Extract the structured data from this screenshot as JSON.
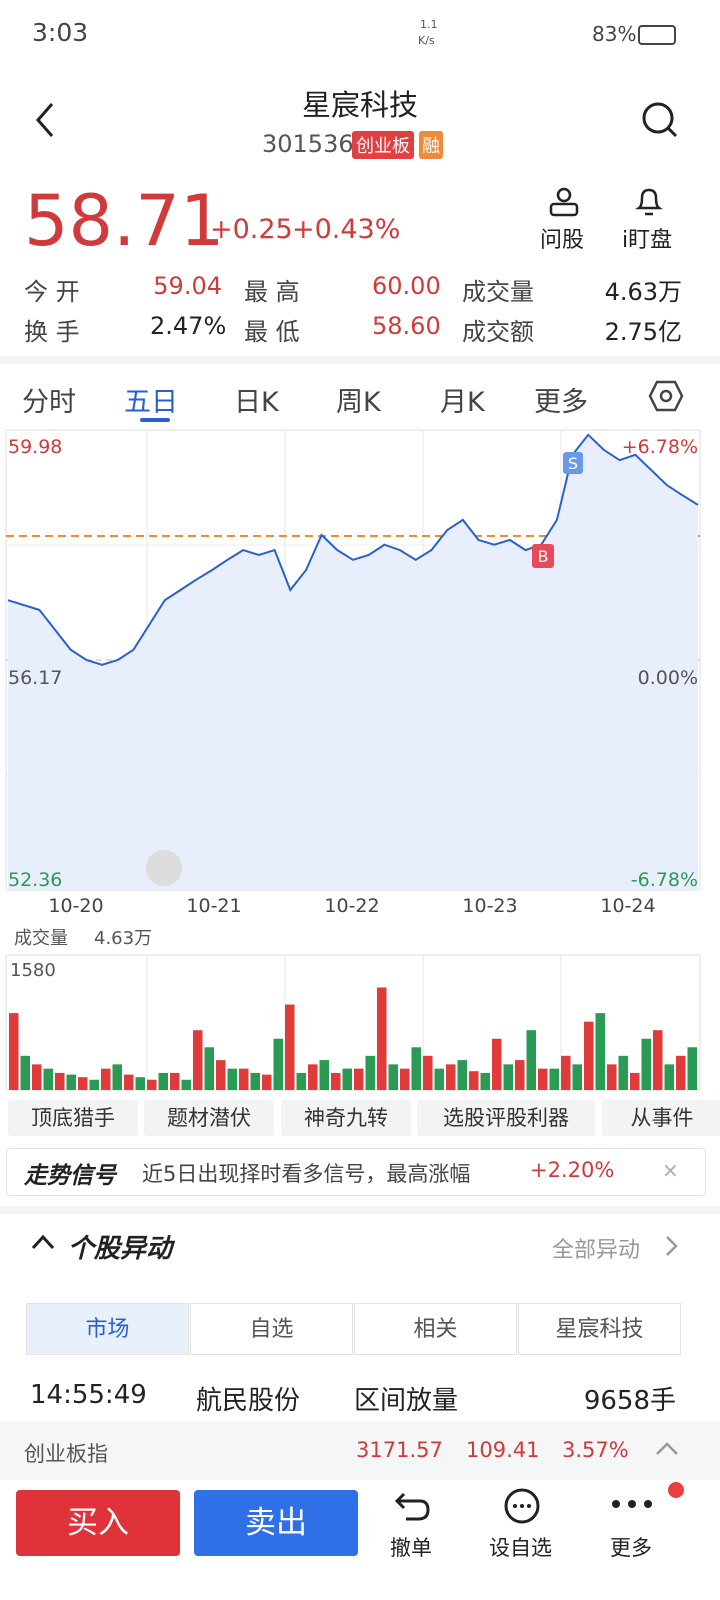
{
  "status_bar": {
    "time": "3:03",
    "speed": "1.1",
    "speed_unit": "K/s",
    "battery": "83%"
  },
  "header": {
    "title": "星宸科技",
    "code": "301536",
    "board_tag": "创业板",
    "margin_tag": "融"
  },
  "quote": {
    "price": "58.71",
    "change": "+0.25",
    "change_pct": "+0.43%",
    "actions": [
      "问股",
      "i盯盘"
    ]
  },
  "stats": [
    [
      "今 开",
      "59.04",
      "最 高",
      "60.00",
      "成交量",
      "4.63万"
    ],
    [
      "换 手",
      "2.47%",
      "最 低",
      "58.60",
      "成交额",
      "2.75亿"
    ]
  ],
  "tabs": [
    "分时",
    "五日",
    "日K",
    "周K",
    "月K",
    "更多"
  ],
  "chart": {
    "price_top": 59.98,
    "price_mid": 56.17,
    "price_bottom": 52.36,
    "pct_top": "+6.78%",
    "pct_mid": "0.00%",
    "pct_bottom": "-6.78%",
    "dates": [
      "10-20",
      "10-21",
      "10-22",
      "10-23",
      "10-24"
    ],
    "prices": [
      57.16,
      57.08,
      57.0,
      56.67,
      56.34,
      56.17,
      56.09,
      56.17,
      56.34,
      56.75,
      57.16,
      57.33,
      57.5,
      57.66,
      57.83,
      57.99,
      57.91,
      57.99,
      57.33,
      57.66,
      58.24,
      57.99,
      57.83,
      57.91,
      58.08,
      57.99,
      57.83,
      57.99,
      58.32,
      58.49,
      58.16,
      58.08,
      58.16,
      57.99,
      58.08,
      58.49,
      59.57,
      59.9,
      59.65,
      59.48,
      59.57,
      59.32,
      59.07,
      58.9,
      58.74
    ],
    "price_color": "#2a5fd0",
    "sell_mark": "S",
    "buy_mark": "B",
    "volume_label": "成交量",
    "volume_total": "4.63万",
    "volume_max": 1580,
    "volume_series": [
      {
        "color": "#e03a3a",
        "values": [
          900,
          300,
          200,
          150,
          250,
          180,
          120,
          200,
          700,
          350,
          250,
          180,
          1000,
          300,
          200,
          250,
          1200,
          250,
          400,
          300,
          220,
          600,
          350,
          250,
          400,
          800,
          300,
          200,
          700,
          400
        ]
      },
      {
        "color": "#2a9a55",
        "values": [
          400,
          250,
          180,
          120,
          300,
          150,
          200,
          120,
          500,
          250,
          200,
          600,
          200,
          350,
          250,
          400,
          300,
          500,
          250,
          350,
          200,
          300,
          700,
          250,
          300,
          900,
          400,
          600,
          300,
          500
        ]
      }
    ]
  },
  "tools": [
    "顶底猎手",
    "题材潜伏",
    "神奇九转",
    "选股评股利器",
    "从事件"
  ],
  "signal": {
    "title": "走势信号",
    "text": "近5日出现择时看多信号，最高涨幅",
    "value": "+2.20%"
  },
  "movement": {
    "title": "个股异动",
    "link": "全部异动",
    "subtabs": [
      "市场",
      "自选",
      "相关",
      "星宸科技"
    ],
    "row": [
      "14:55:49",
      "航民股份",
      "区间放量",
      "9658手"
    ]
  },
  "index_bar": [
    "创业板指",
    "3171.57",
    "109.41",
    "3.57%"
  ],
  "bottom": {
    "buy": "买入",
    "sell": "卖出",
    "actions": [
      "撤单",
      "设自选",
      "更多"
    ]
  }
}
